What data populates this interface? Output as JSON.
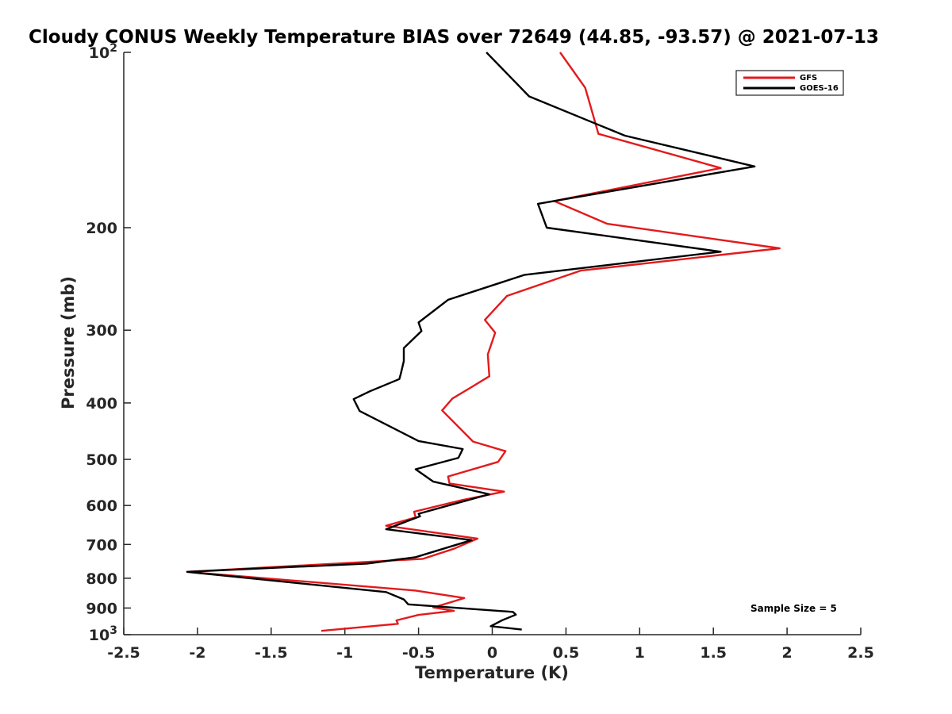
{
  "chart_data": {
    "type": "line",
    "title": "Cloudy CONUS Weekly Temperature BIAS over 72649 (44.85, -93.57) @ 2021-07-13",
    "xlabel": "Temperature (K)",
    "ylabel": "Pressure (mb)",
    "xlim": [
      -2.5,
      2.5
    ],
    "ylim": [
      100,
      1000
    ],
    "y_scale": "log",
    "y_reversed": true,
    "x_ticks": [
      "-2.5",
      "-2",
      "-1.5",
      "-1",
      "-0.5",
      "0",
      "0.5",
      "1",
      "1.5",
      "2",
      "2.5"
    ],
    "y_ticks": [
      {
        "value": 100,
        "base": "10",
        "exp": "2"
      },
      {
        "value": 200,
        "base": "200",
        "exp": ""
      },
      {
        "value": 300,
        "base": "300",
        "exp": ""
      },
      {
        "value": 400,
        "base": "400",
        "exp": ""
      },
      {
        "value": 500,
        "base": "500",
        "exp": ""
      },
      {
        "value": 600,
        "base": "600",
        "exp": ""
      },
      {
        "value": 700,
        "base": "700",
        "exp": ""
      },
      {
        "value": 800,
        "base": "800",
        "exp": ""
      },
      {
        "value": 900,
        "base": "900",
        "exp": ""
      },
      {
        "value": 1000,
        "base": "10",
        "exp": "3"
      }
    ],
    "legend_position": "top-right",
    "annotation": "Sample Size = 5",
    "series": [
      {
        "name": "GFS",
        "color": "#e31a1c",
        "points": [
          [
            0.46,
            100
          ],
          [
            0.63,
            115
          ],
          [
            0.66,
            122
          ],
          [
            0.72,
            138
          ],
          [
            1.55,
            158
          ],
          [
            0.42,
            180
          ],
          [
            0.78,
            197
          ],
          [
            1.95,
            217
          ],
          [
            0.6,
            237
          ],
          [
            0.1,
            262
          ],
          [
            -0.05,
            288
          ],
          [
            0.02,
            303
          ],
          [
            -0.03,
            330
          ],
          [
            -0.02,
            360
          ],
          [
            -0.15,
            377
          ],
          [
            -0.27,
            393
          ],
          [
            -0.34,
            412
          ],
          [
            -0.13,
            466
          ],
          [
            0.09,
            484
          ],
          [
            0.04,
            505
          ],
          [
            -0.3,
            535
          ],
          [
            -0.29,
            550
          ],
          [
            0.08,
            568
          ],
          [
            -0.2,
            587
          ],
          [
            -0.53,
            615
          ],
          [
            -0.52,
            629
          ],
          [
            -0.72,
            650
          ],
          [
            -0.1,
            684
          ],
          [
            -0.26,
            712
          ],
          [
            -0.47,
            741
          ],
          [
            -2.07,
            780
          ],
          [
            -0.52,
            840
          ],
          [
            -0.19,
            865
          ],
          [
            -0.25,
            875
          ],
          [
            -0.4,
            898
          ],
          [
            -0.26,
            910
          ],
          [
            -0.5,
            925
          ],
          [
            -0.65,
            945
          ],
          [
            -0.64,
            958
          ],
          [
            -1.16,
            985
          ]
        ]
      },
      {
        "name": "GOES-16",
        "color": "#000000",
        "points": [
          [
            -0.04,
            100
          ],
          [
            0.25,
            119
          ],
          [
            0.9,
            139
          ],
          [
            1.78,
            157
          ],
          [
            0.31,
            182
          ],
          [
            0.37,
            200
          ],
          [
            1.55,
            220
          ],
          [
            0.22,
            241
          ],
          [
            -0.3,
            266
          ],
          [
            -0.5,
            291
          ],
          [
            -0.48,
            301
          ],
          [
            -0.6,
            322
          ],
          [
            -0.6,
            339
          ],
          [
            -0.62,
            356
          ],
          [
            -0.63,
            364
          ],
          [
            -0.83,
            382
          ],
          [
            -0.94,
            394
          ],
          [
            -0.9,
            413
          ],
          [
            -0.5,
            465
          ],
          [
            -0.2,
            480
          ],
          [
            -0.23,
            497
          ],
          [
            -0.52,
            520
          ],
          [
            -0.4,
            546
          ],
          [
            -0.02,
            574
          ],
          [
            -0.5,
            620
          ],
          [
            -0.49,
            626
          ],
          [
            -0.72,
            659
          ],
          [
            -0.14,
            688
          ],
          [
            -0.52,
            736
          ],
          [
            -0.85,
            755
          ],
          [
            -2.07,
            780
          ],
          [
            -0.72,
            845
          ],
          [
            -0.6,
            870
          ],
          [
            -0.57,
            887
          ],
          [
            0.14,
            914
          ],
          [
            0.16,
            924
          ],
          [
            0.07,
            944
          ],
          [
            -0.01,
            967
          ],
          [
            0.2,
            980
          ]
        ]
      }
    ]
  }
}
